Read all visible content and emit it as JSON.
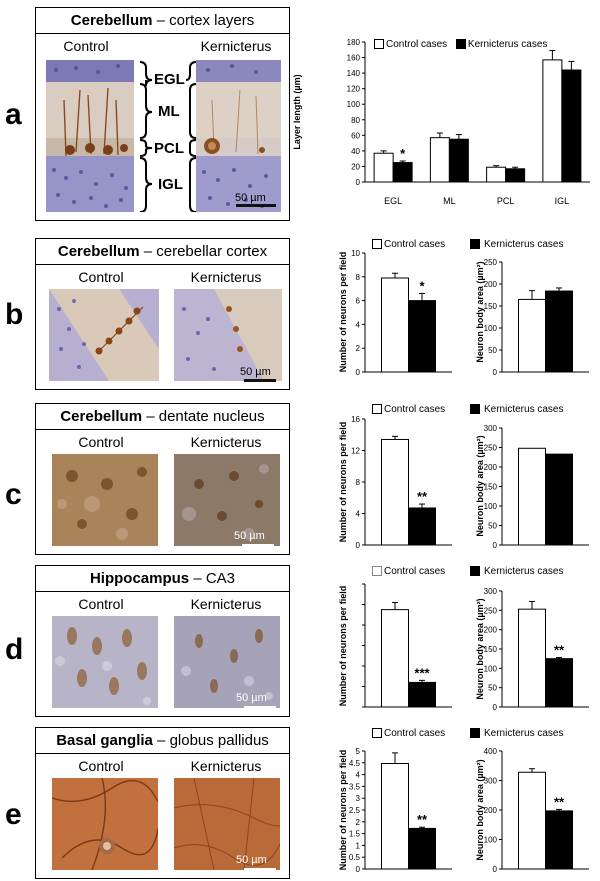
{
  "panels": [
    {
      "letter": "a",
      "title_bold": "Cerebellum",
      "title_rest": " – cortex layers",
      "control_label": "Control",
      "case_label": "Kernicterus",
      "scale_label": "50 µm",
      "layers": [
        "EGL",
        "ML",
        "PCL",
        "IGL"
      ]
    },
    {
      "letter": "b",
      "title_bold": "Cerebellum",
      "title_rest": " – cerebellar cortex",
      "control_label": "Control",
      "case_label": "Kernicterus",
      "scale_label": "50 µm"
    },
    {
      "letter": "c",
      "title_bold": "Cerebellum",
      "title_rest": " – dentate nucleus",
      "control_label": "Control",
      "case_label": "Kernicterus",
      "scale_label": "50 µm"
    },
    {
      "letter": "d",
      "title_bold": "Hippocampus",
      "title_rest": " – CA3",
      "control_label": "Control",
      "case_label": "Kernicterus",
      "scale_label": "50 µm"
    },
    {
      "letter": "e",
      "title_bold": "Basal ganglia",
      "title_rest": " – globus pallidus",
      "control_label": "Control",
      "case_label": "Kernicterus",
      "scale_label": "50 µm"
    }
  ],
  "legend": {
    "control": "Control cases",
    "case": "Kernicterus cases"
  },
  "colors": {
    "control": "#ffffff",
    "case": "#000000"
  },
  "chart_data": [
    {
      "id": "a-layers",
      "type": "bar",
      "ylabel": "Layer length (µm)",
      "categories": [
        "EGL",
        "ML",
        "PCL",
        "IGL"
      ],
      "ylim": [
        0,
        180
      ],
      "yticks": [
        0,
        20,
        40,
        60,
        80,
        100,
        120,
        140,
        160,
        180
      ],
      "show_xticklabels": true,
      "series": [
        {
          "name": "Control cases",
          "values": [
            37,
            57,
            19,
            157
          ],
          "errors": [
            3,
            6,
            2,
            12
          ]
        },
        {
          "name": "Kernicterus cases",
          "values": [
            25,
            55,
            17,
            144
          ],
          "errors": [
            2,
            6,
            2,
            11
          ]
        }
      ],
      "significance": [
        "*",
        "",
        "",
        ""
      ]
    },
    {
      "id": "b-neurons",
      "type": "bar",
      "ylabel": "Number of neurons per field",
      "ylim": [
        0,
        10
      ],
      "yticks": [
        0,
        2,
        4,
        6,
        8,
        10
      ],
      "series": [
        {
          "name": "Control cases",
          "values": [
            7.9
          ],
          "errors": [
            0.4
          ]
        },
        {
          "name": "Kernicterus cases",
          "values": [
            6.0
          ],
          "errors": [
            0.6
          ]
        }
      ],
      "significance": [
        "*"
      ]
    },
    {
      "id": "b-area",
      "type": "bar",
      "ylabel": "Neuron body area (µm²)",
      "ylim": [
        0,
        250
      ],
      "yticks": [
        0,
        50,
        100,
        150,
        200,
        250
      ],
      "series": [
        {
          "name": "Control cases",
          "values": [
            165
          ],
          "errors": [
            20
          ]
        },
        {
          "name": "Kernicterus cases",
          "values": [
            184
          ],
          "errors": [
            7
          ]
        }
      ],
      "significance": [
        ""
      ]
    },
    {
      "id": "c-neurons",
      "type": "bar",
      "ylabel": "Number of neurons per field",
      "ylim": [
        0,
        16
      ],
      "yticks": [
        0,
        4,
        8,
        12,
        16
      ],
      "series": [
        {
          "name": "Control cases",
          "values": [
            13.4
          ],
          "errors": [
            0.4
          ]
        },
        {
          "name": "Kernicterus cases",
          "values": [
            4.7
          ],
          "errors": [
            0.5
          ]
        }
      ],
      "significance": [
        "**"
      ]
    },
    {
      "id": "c-area",
      "type": "bar",
      "ylabel": "Neuron body area (µm²)",
      "ylim": [
        0,
        300
      ],
      "yticks": [
        0,
        50,
        100,
        150,
        200,
        250,
        300
      ],
      "series": [
        {
          "name": "Control cases",
          "values": [
            248
          ],
          "errors": [
            0
          ]
        },
        {
          "name": "Kernicterus cases",
          "values": [
            233
          ],
          "errors": [
            0
          ]
        }
      ],
      "significance": [
        ""
      ]
    },
    {
      "id": "d-neurons",
      "type": "bar",
      "ylabel": "Number of neurons per field",
      "ylim": [
        0,
        12
      ],
      "yticks": [
        0,
        2,
        4,
        6,
        8,
        10,
        12
      ],
      "show_yticklabels": false,
      "series": [
        {
          "name": "Control cases",
          "values": [
            9.5
          ],
          "errors": [
            0.7
          ]
        },
        {
          "name": "Kernicterus cases",
          "values": [
            2.4
          ],
          "errors": [
            0.2
          ]
        }
      ],
      "significance": [
        "***"
      ]
    },
    {
      "id": "d-area",
      "type": "bar",
      "ylabel": "Neuron body area (µm²)",
      "ylim": [
        0,
        300
      ],
      "yticks": [
        0,
        50,
        100,
        150,
        200,
        250,
        300
      ],
      "series": [
        {
          "name": "Control cases",
          "values": [
            253
          ],
          "errors": [
            20
          ]
        },
        {
          "name": "Kernicterus cases",
          "values": [
            125
          ],
          "errors": [
            3
          ]
        }
      ],
      "significance": [
        "**"
      ]
    },
    {
      "id": "e-neurons",
      "type": "bar",
      "ylabel": "Number of neurons per field",
      "ylim": [
        0,
        5
      ],
      "yticks": [
        0,
        0.5,
        1,
        1.5,
        2,
        2.5,
        3,
        3.5,
        4,
        4.5,
        5
      ],
      "series": [
        {
          "name": "Control cases",
          "values": [
            4.47
          ],
          "errors": [
            0.45
          ]
        },
        {
          "name": "Kernicterus cases",
          "values": [
            1.72
          ],
          "errors": [
            0.05
          ]
        }
      ],
      "significance": [
        "**"
      ]
    },
    {
      "id": "e-area",
      "type": "bar",
      "ylabel": "Neuron body area (µm²)",
      "ylim": [
        0,
        400
      ],
      "yticks": [
        0,
        100,
        200,
        300,
        400
      ],
      "series": [
        {
          "name": "Control cases",
          "values": [
            328
          ],
          "errors": [
            12
          ]
        },
        {
          "name": "Kernicterus cases",
          "values": [
            197
          ],
          "errors": [
            5
          ]
        }
      ],
      "significance": [
        "**"
      ]
    }
  ]
}
